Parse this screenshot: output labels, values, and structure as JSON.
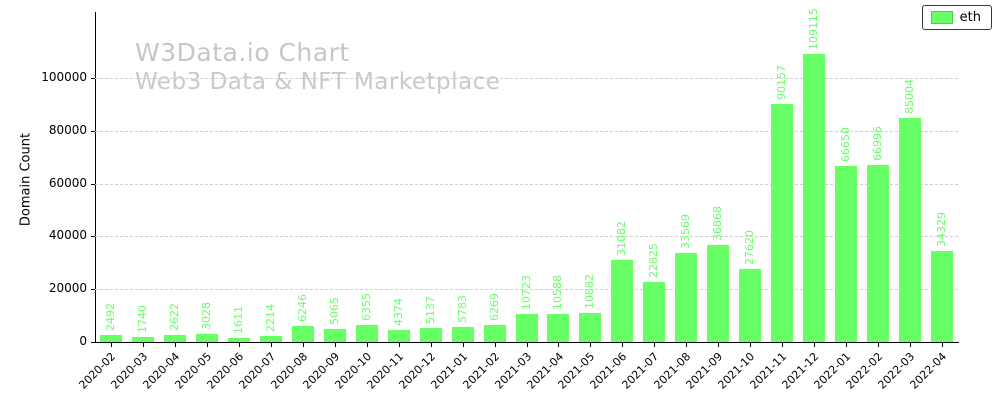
{
  "watermark": {
    "line1": "W3Data.io Chart",
    "line2": "Web3 Data & NFT Marketplace"
  },
  "legend": {
    "label": "eth"
  },
  "colors": {
    "bar": "#66ff66",
    "value_label": "#66ff66",
    "watermark": "#c8c8c8",
    "grid": "#cfcfcf",
    "axis": "#000000"
  },
  "chart_data": {
    "type": "bar",
    "title": "W3Data.io Chart",
    "subtitle": "Web3 Data & NFT Marketplace",
    "xlabel": "",
    "ylabel": "Domain Count",
    "ylim": [
      0,
      125000
    ],
    "yticks": [
      0,
      20000,
      40000,
      60000,
      80000,
      100000
    ],
    "grid": "dashed-horizontal",
    "legend_position": "top-right",
    "categories": [
      "2020-02",
      "2020-03",
      "2020-04",
      "2020-05",
      "2020-06",
      "2020-07",
      "2020-08",
      "2020-09",
      "2020-10",
      "2020-11",
      "2020-12",
      "2021-01",
      "2021-02",
      "2021-03",
      "2021-04",
      "2021-05",
      "2021-06",
      "2021-07",
      "2021-08",
      "2021-09",
      "2021-10",
      "2021-11",
      "2021-12",
      "2022-01",
      "2022-02",
      "2022-03",
      "2022-04"
    ],
    "series": [
      {
        "name": "eth",
        "values": [
          2492,
          1740,
          2622,
          3028,
          1611,
          2214,
          6246,
          5065,
          6355,
          4374,
          5137,
          5783,
          6269,
          10723,
          10588,
          10882,
          31082,
          22825,
          33569,
          36868,
          27620,
          90157,
          109115,
          66650,
          66996,
          85004,
          34329
        ]
      }
    ]
  }
}
